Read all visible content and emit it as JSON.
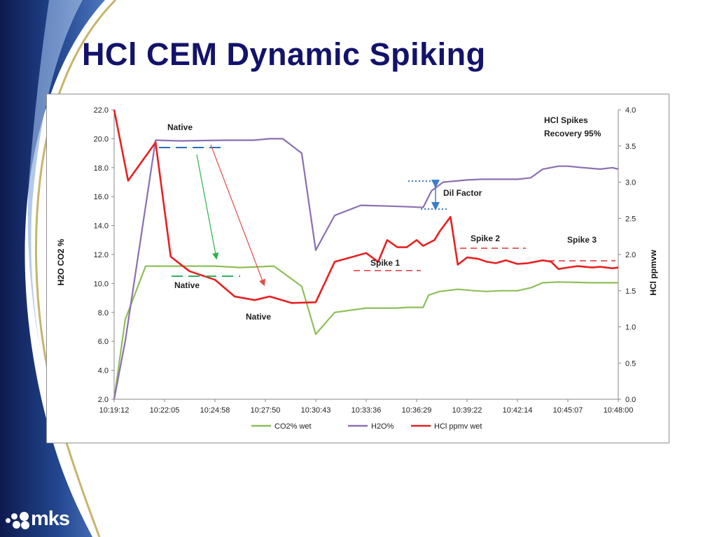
{
  "slide": {
    "title": "HCl CEM Dynamic Spiking",
    "logo_text": "mks",
    "colors": {
      "title": "#13136b",
      "swoosh_dark": "#0d1a4f",
      "swoosh_light": "#3f67b0",
      "gold": "#c8b46c"
    }
  },
  "chart_data": {
    "type": "line",
    "title": "",
    "xlabel": "",
    "ylabel": "H2O CO2 %",
    "y2label": "HCl ppmvw",
    "x_ticks": [
      "10:19:12",
      "10:22:05",
      "10:24:58",
      "10:27:50",
      "10:30:43",
      "10:33:36",
      "10:36:29",
      "10:39:22",
      "10:42:14",
      "10:45:07",
      "10:48:00"
    ],
    "ylim": [
      2.0,
      22.0
    ],
    "y_ticks": [
      "2.0",
      "4.0",
      "6.0",
      "8.0",
      "10.0",
      "12.0",
      "14.0",
      "16.0",
      "18.0",
      "20.0",
      "22.0"
    ],
    "y2lim": [
      0.0,
      4.0
    ],
    "y2_ticks": [
      "0.0",
      "0.5",
      "1.0",
      "1.5",
      "2.0",
      "2.5",
      "3.0",
      "3.5",
      "4.0"
    ],
    "x_start": "10:19:12",
    "x_end": "10:48:00",
    "grid": false,
    "legend_position": "bottom",
    "series": [
      {
        "name": "CO2% wet",
        "axis": "left",
        "color": "#8dbf5a",
        "points": [
          [
            "10:19:12",
            2.0
          ],
          [
            "10:19:50",
            7.5
          ],
          [
            "10:21:00",
            11.2
          ],
          [
            "10:22:26",
            11.2
          ],
          [
            "10:24:58",
            11.2
          ],
          [
            "10:26:24",
            11.1
          ],
          [
            "10:28:20",
            11.2
          ],
          [
            "10:29:55",
            9.8
          ],
          [
            "10:30:43",
            6.5
          ],
          [
            "10:31:48",
            8.0
          ],
          [
            "10:33:36",
            8.3
          ],
          [
            "10:34:30",
            8.3
          ],
          [
            "10:35:23",
            8.3
          ],
          [
            "10:35:55",
            8.35
          ],
          [
            "10:36:51",
            8.35
          ],
          [
            "10:37:10",
            9.2
          ],
          [
            "10:37:48",
            9.45
          ],
          [
            "10:38:50",
            9.6
          ],
          [
            "10:39:48",
            9.5
          ],
          [
            "10:40:25",
            9.45
          ],
          [
            "10:41:15",
            9.5
          ],
          [
            "10:42:14",
            9.5
          ],
          [
            "10:43:00",
            9.7
          ],
          [
            "10:43:41",
            10.05
          ],
          [
            "10:44:35",
            10.1
          ],
          [
            "10:46:30",
            10.05
          ],
          [
            "10:47:40",
            10.05
          ],
          [
            "10:48:00",
            10.05
          ]
        ]
      },
      {
        "name": "H2O%",
        "axis": "left",
        "color": "#8a6fb3",
        "points": [
          [
            "10:19:12",
            2.0
          ],
          [
            "10:19:50",
            6.0
          ],
          [
            "10:21:34",
            19.9
          ],
          [
            "10:23:00",
            19.85
          ],
          [
            "10:25:40",
            19.9
          ],
          [
            "10:27:10",
            19.9
          ],
          [
            "10:28:05",
            20.0
          ],
          [
            "10:28:50",
            20.0
          ],
          [
            "10:29:55",
            19.0
          ],
          [
            "10:30:43",
            12.3
          ],
          [
            "10:31:48",
            14.7
          ],
          [
            "10:33:18",
            15.4
          ],
          [
            "10:34:48",
            15.35
          ],
          [
            "10:36:00",
            15.3
          ],
          [
            "10:36:51",
            15.25
          ],
          [
            "10:37:20",
            16.4
          ],
          [
            "10:38:00",
            17.0
          ],
          [
            "10:39:22",
            17.15
          ],
          [
            "10:40:10",
            17.2
          ],
          [
            "10:41:15",
            17.2
          ],
          [
            "10:42:14",
            17.2
          ],
          [
            "10:43:00",
            17.3
          ],
          [
            "10:43:41",
            17.9
          ],
          [
            "10:44:35",
            18.1
          ],
          [
            "10:45:07",
            18.1
          ],
          [
            "10:46:00",
            18.0
          ],
          [
            "10:46:58",
            17.9
          ],
          [
            "10:47:40",
            18.0
          ],
          [
            "10:48:00",
            17.9
          ]
        ]
      },
      {
        "name": "HCl ppmv wet",
        "axis": "right",
        "color": "#e82020",
        "points": [
          [
            "10:19:12",
            4.0
          ],
          [
            "10:20:00",
            3.02
          ],
          [
            "10:21:34",
            3.55
          ],
          [
            "10:22:26",
            1.97
          ],
          [
            "10:23:30",
            1.77
          ],
          [
            "10:24:58",
            1.65
          ],
          [
            "10:26:05",
            1.42
          ],
          [
            "10:27:14",
            1.37
          ],
          [
            "10:28:05",
            1.42
          ],
          [
            "10:29:20",
            1.33
          ],
          [
            "10:30:43",
            1.34
          ],
          [
            "10:31:48",
            1.9
          ],
          [
            "10:33:36",
            2.02
          ],
          [
            "10:34:17",
            1.9
          ],
          [
            "10:34:48",
            2.2
          ],
          [
            "10:35:23",
            2.1
          ],
          [
            "10:35:55",
            2.1
          ],
          [
            "10:36:29",
            2.2
          ],
          [
            "10:36:51",
            2.12
          ],
          [
            "10:37:30",
            2.2
          ],
          [
            "10:37:48",
            2.32
          ],
          [
            "10:38:25",
            2.52
          ],
          [
            "10:38:50",
            1.86
          ],
          [
            "10:39:22",
            1.96
          ],
          [
            "10:40:00",
            1.94
          ],
          [
            "10:40:30",
            1.9
          ],
          [
            "10:41:00",
            1.88
          ],
          [
            "10:41:35",
            1.92
          ],
          [
            "10:42:14",
            1.87
          ],
          [
            "10:42:50",
            1.88
          ],
          [
            "10:43:41",
            1.92
          ],
          [
            "10:44:10",
            1.9
          ],
          [
            "10:44:35",
            1.8
          ],
          [
            "10:45:07",
            1.82
          ],
          [
            "10:45:40",
            1.84
          ],
          [
            "10:46:30",
            1.82
          ],
          [
            "10:46:58",
            1.83
          ],
          [
            "10:47:40",
            1.81
          ],
          [
            "10:48:00",
            1.82
          ]
        ]
      }
    ],
    "annotations": {
      "native_top": "Native",
      "native_left": "Native",
      "native_mid": "Native",
      "spike1": "Spike 1",
      "spike2": "Spike 2",
      "spike3": "Spike 3",
      "dil_factor": "Dil Factor",
      "recovery_line1": "HCl Spikes",
      "recovery_line2": "Recovery 95%"
    }
  }
}
